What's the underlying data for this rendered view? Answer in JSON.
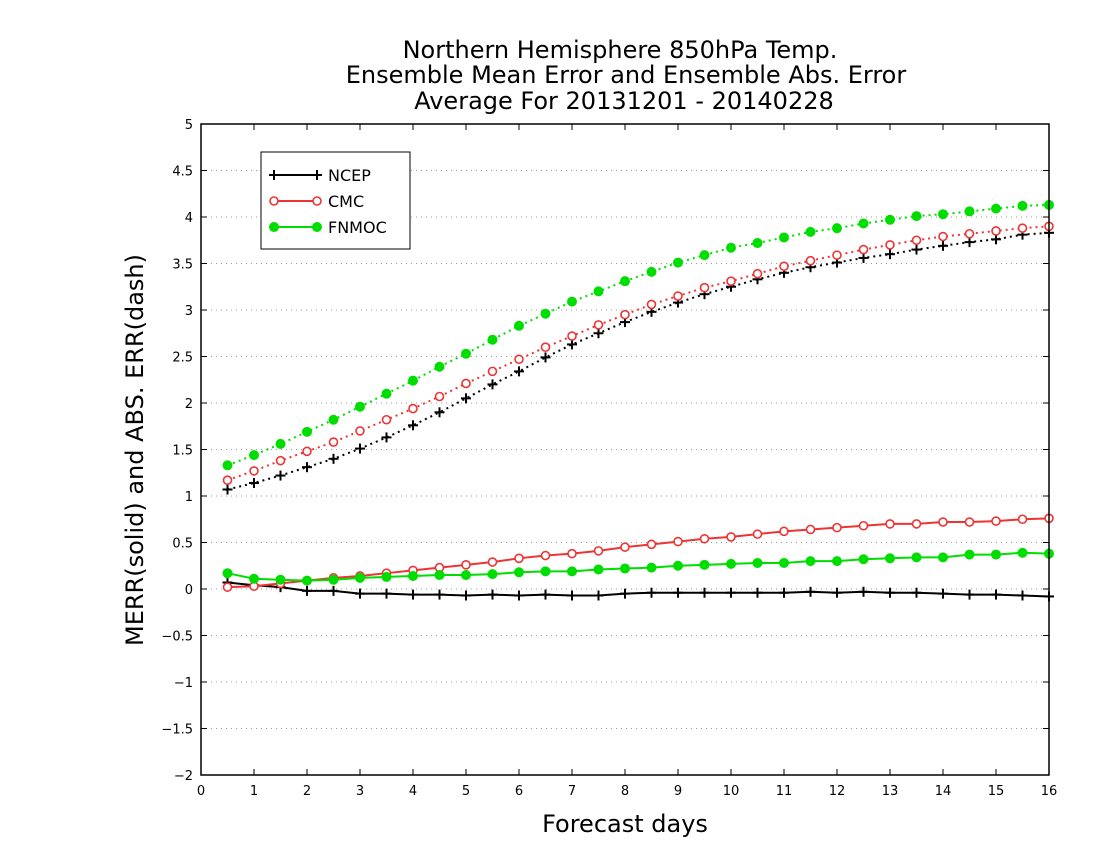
{
  "chart_data": {
    "type": "line",
    "title_lines": [
      "Northern Hemisphere 850hPa Temp.",
      "Ensemble Mean Error and Ensemble Abs. Error",
      "Average For 20131201 - 20140228"
    ],
    "xlabel": "Forecast days",
    "ylabel": "MERR(solid) and ABS. ERR(dash)",
    "xlim": [
      0,
      16
    ],
    "ylim": [
      -2,
      5
    ],
    "x_ticks": [
      "0",
      "1",
      "2",
      "3",
      "4",
      "5",
      "6",
      "7",
      "8",
      "9",
      "10",
      "11",
      "12",
      "13",
      "14",
      "15",
      "16"
    ],
    "y_ticks": [
      "−2",
      "−1.5",
      "−1",
      "−0.5",
      "0",
      "0.5",
      "1",
      "1.5",
      "2",
      "2.5",
      "3",
      "3.5",
      "4",
      "4.5",
      "5"
    ],
    "grid": "dotted horizontal",
    "legend_position": "top-left",
    "x": [
      0.5,
      1,
      1.5,
      2,
      2.5,
      3,
      3.5,
      4,
      4.5,
      5,
      5.5,
      6,
      6.5,
      7,
      7.5,
      8,
      8.5,
      9,
      9.5,
      10,
      10.5,
      11,
      11.5,
      12,
      12.5,
      13,
      13.5,
      14,
      14.5,
      15,
      15.5,
      16
    ],
    "series": [
      {
        "name": "NCEP",
        "color": "#000000",
        "marker": "plus",
        "merr": [
          0.07,
          0.04,
          0.02,
          -0.02,
          -0.02,
          -0.05,
          -0.05,
          -0.06,
          -0.06,
          -0.07,
          -0.06,
          -0.07,
          -0.06,
          -0.07,
          -0.07,
          -0.05,
          -0.04,
          -0.04,
          -0.04,
          -0.04,
          -0.04,
          -0.04,
          -0.03,
          -0.04,
          -0.03,
          -0.04,
          -0.04,
          -0.05,
          -0.06,
          -0.06,
          -0.07,
          -0.08
        ],
        "abs_err": [
          1.07,
          1.14,
          1.22,
          1.31,
          1.4,
          1.51,
          1.63,
          1.76,
          1.9,
          2.05,
          2.2,
          2.34,
          2.49,
          2.63,
          2.75,
          2.87,
          2.98,
          3.08,
          3.17,
          3.25,
          3.33,
          3.4,
          3.46,
          3.51,
          3.56,
          3.6,
          3.65,
          3.69,
          3.73,
          3.76,
          3.81,
          3.83
        ]
      },
      {
        "name": "CMC",
        "color": "#ee3333",
        "marker": "open-circle",
        "merr": [
          0.02,
          0.03,
          0.06,
          0.09,
          0.12,
          0.14,
          0.17,
          0.2,
          0.23,
          0.26,
          0.29,
          0.33,
          0.36,
          0.38,
          0.41,
          0.45,
          0.48,
          0.51,
          0.54,
          0.56,
          0.59,
          0.62,
          0.64,
          0.66,
          0.68,
          0.7,
          0.7,
          0.72,
          0.72,
          0.73,
          0.75,
          0.76
        ],
        "abs_err": [
          1.17,
          1.27,
          1.38,
          1.48,
          1.58,
          1.7,
          1.82,
          1.94,
          2.07,
          2.21,
          2.34,
          2.47,
          2.6,
          2.72,
          2.84,
          2.95,
          3.06,
          3.15,
          3.24,
          3.31,
          3.39,
          3.47,
          3.53,
          3.59,
          3.65,
          3.7,
          3.75,
          3.79,
          3.82,
          3.85,
          3.88,
          3.9
        ]
      },
      {
        "name": "FNMOC",
        "color": "#00dd00",
        "marker": "filled-circle",
        "merr": [
          0.17,
          0.11,
          0.1,
          0.09,
          0.1,
          0.12,
          0.13,
          0.14,
          0.15,
          0.15,
          0.16,
          0.18,
          0.19,
          0.19,
          0.21,
          0.22,
          0.23,
          0.25,
          0.26,
          0.27,
          0.28,
          0.28,
          0.3,
          0.3,
          0.32,
          0.33,
          0.34,
          0.34,
          0.37,
          0.37,
          0.39,
          0.38
        ],
        "abs_err": [
          1.33,
          1.44,
          1.56,
          1.69,
          1.82,
          1.96,
          2.1,
          2.24,
          2.39,
          2.53,
          2.68,
          2.83,
          2.96,
          3.09,
          3.2,
          3.31,
          3.41,
          3.51,
          3.59,
          3.67,
          3.72,
          3.78,
          3.84,
          3.88,
          3.93,
          3.97,
          4.01,
          4.03,
          4.06,
          4.09,
          4.12,
          4.13
        ]
      }
    ]
  }
}
